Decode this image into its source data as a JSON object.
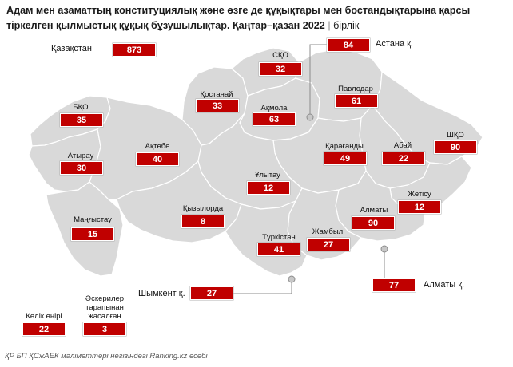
{
  "title": {
    "line1": "Адам мен азаматтың конституциялық және өзге де құқықтары мен бостандықтарына қарсы",
    "line2": "тіркелген қылмыстық құқық бұзушылықтар. Қаңтар–қазан 2022",
    "separator": "|",
    "unit": "бірлік"
  },
  "colors": {
    "accent": "#c00000",
    "region_fill": "#d9d9d9",
    "region_border": "#ffffff"
  },
  "regions": {
    "kazakhstan": {
      "label": "Қазақстан",
      "value": "873"
    },
    "sko": {
      "label": "СҚО",
      "value": "32"
    },
    "astana": {
      "label": "Астана қ.",
      "value": "84"
    },
    "kostanay": {
      "label": "Қостанай",
      "value": "33"
    },
    "akmola": {
      "label": "Ақмола",
      "value": "63"
    },
    "pavlodar": {
      "label": "Павлодар",
      "value": "61"
    },
    "bko": {
      "label": "БҚО",
      "value": "35"
    },
    "shko": {
      "label": "ШҚО",
      "value": "90"
    },
    "atyrau": {
      "label": "Атырау",
      "value": "30"
    },
    "aktobe": {
      "label": "Ақтөбе",
      "value": "40"
    },
    "karaganda": {
      "label": "Қарағанды",
      "value": "49"
    },
    "abay": {
      "label": "Абай",
      "value": "22"
    },
    "ulytau": {
      "label": "Ұлытау",
      "value": "12"
    },
    "zhetisu": {
      "label": "Жетісу",
      "value": "12"
    },
    "mangystau": {
      "label": "Маңғыстау",
      "value": "15"
    },
    "kyzylorda": {
      "label": "Қызылорда",
      "value": "8"
    },
    "almaty_region": {
      "label": "Алматы",
      "value": "90"
    },
    "turkistan": {
      "label": "Түркістан",
      "value": "41"
    },
    "zhambyl": {
      "label": "Жамбыл",
      "value": "27"
    },
    "almaty_city": {
      "label": "Алматы қ.",
      "value": "77"
    },
    "shymkent": {
      "label": "Шымкент қ.",
      "value": "27"
    },
    "transport": {
      "label": "Көлік өңірі",
      "value": "22"
    },
    "military": {
      "label": "Әскерилер\nтарапынан\nжасалған",
      "value": "3"
    }
  },
  "source": "ҚР БП ҚСжАЕК мәліметтері негізіндегі Ranking.kz есебі"
}
